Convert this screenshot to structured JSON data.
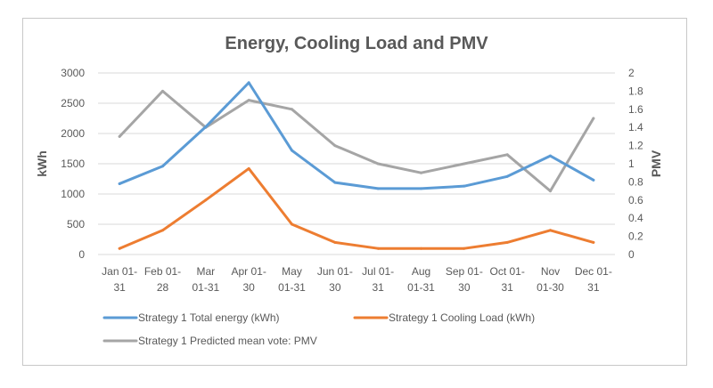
{
  "chart_data": {
    "type": "line",
    "title": "Energy, Cooling Load and PMV",
    "xlabel": "",
    "ylabel": "kWh",
    "y2label": "PMV",
    "ylim": [
      0,
      3000
    ],
    "y2lim": [
      0,
      2
    ],
    "yticks": [
      "0",
      "500",
      "1000",
      "1500",
      "2000",
      "2500",
      "3000"
    ],
    "y2ticks": [
      "0",
      "0.2",
      "0.4",
      "0.6",
      "0.8",
      "1",
      "1.2",
      "1.4",
      "1.6",
      "1.8",
      "2"
    ],
    "grid": true,
    "legend_position": "bottom",
    "categories": [
      [
        "Jan 01-",
        "31"
      ],
      [
        "Feb 01-",
        "28"
      ],
      [
        "Mar",
        "01-31"
      ],
      [
        "Apr 01-",
        "30"
      ],
      [
        "May",
        "01-31"
      ],
      [
        "Jun 01-",
        "30"
      ],
      [
        "Jul 01-",
        "31"
      ],
      [
        "Aug",
        "01-31"
      ],
      [
        "Sep 01-",
        "30"
      ],
      [
        "Oct 01-",
        "31"
      ],
      [
        "Nov",
        "01-30"
      ],
      [
        "Dec 01-",
        "31"
      ]
    ],
    "series": [
      {
        "name": "Strategy 1 Total energy (kWh)",
        "axis": "left",
        "color": "#5B9BD5",
        "values": [
          1170,
          1460,
          2110,
          2840,
          1720,
          1190,
          1090,
          1090,
          1130,
          1290,
          1630,
          1230
        ]
      },
      {
        "name": "Strategy 1 Cooling Load (kWh)",
        "axis": "left",
        "color": "#ED7D31",
        "values": [
          100,
          400,
          900,
          1420,
          500,
          200,
          100,
          100,
          100,
          200,
          400,
          200
        ]
      },
      {
        "name": "Strategy 1 Predicted mean vote: PMV",
        "axis": "right",
        "color": "#A5A5A5",
        "values": [
          1.3,
          1.8,
          1.4,
          1.7,
          1.6,
          1.2,
          1.0,
          0.9,
          1.0,
          1.1,
          0.7,
          1.5
        ]
      }
    ]
  }
}
